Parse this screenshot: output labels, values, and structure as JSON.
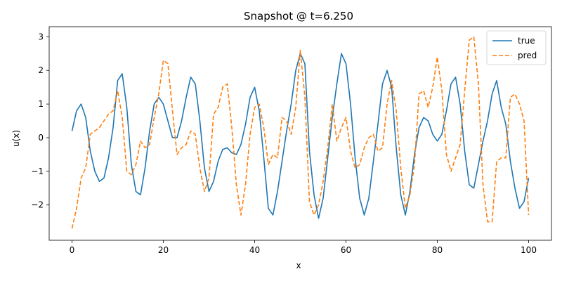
{
  "chart_data": {
    "type": "line",
    "title": "Snapshot @ t=6.250",
    "xlabel": "x",
    "ylabel": "u(x)",
    "xlim": [
      -5,
      105
    ],
    "ylim": [
      -3.05,
      3.3
    ],
    "xticks": [
      0,
      20,
      40,
      60,
      80,
      100
    ],
    "yticks": [
      -2,
      -1,
      0,
      1,
      2,
      3
    ],
    "grid": false,
    "legend_position": "top-right",
    "x": [
      0,
      1,
      2,
      3,
      4,
      5,
      6,
      7,
      8,
      9,
      10,
      11,
      12,
      13,
      14,
      15,
      16,
      17,
      18,
      19,
      20,
      21,
      22,
      23,
      24,
      25,
      26,
      27,
      28,
      29,
      30,
      31,
      32,
      33,
      34,
      35,
      36,
      37,
      38,
      39,
      40,
      41,
      42,
      43,
      44,
      45,
      46,
      47,
      48,
      49,
      50,
      51,
      52,
      53,
      54,
      55,
      56,
      57,
      58,
      59,
      60,
      61,
      62,
      63,
      64,
      65,
      66,
      67,
      68,
      69,
      70,
      71,
      72,
      73,
      74,
      75,
      76,
      77,
      78,
      79,
      80,
      81,
      82,
      83,
      84,
      85,
      86,
      87,
      88,
      89,
      90,
      91,
      92,
      93,
      94,
      95,
      96,
      97,
      98,
      99,
      100
    ],
    "series": [
      {
        "name": "true",
        "color": "#1f77b4",
        "dash": "solid",
        "values": [
          0.2,
          0.8,
          1.0,
          0.6,
          -0.4,
          -1.0,
          -1.3,
          -1.2,
          -0.6,
          0.3,
          1.7,
          1.9,
          0.9,
          -0.8,
          -1.6,
          -1.7,
          -0.9,
          0.2,
          1.0,
          1.2,
          1.0,
          0.5,
          0.0,
          0.0,
          0.5,
          1.2,
          1.8,
          1.6,
          0.5,
          -0.9,
          -1.6,
          -1.3,
          -0.7,
          -0.35,
          -0.3,
          -0.45,
          -0.5,
          -0.2,
          0.4,
          1.2,
          1.5,
          0.8,
          -0.6,
          -2.1,
          -2.3,
          -1.6,
          -0.7,
          0.2,
          1.0,
          2.0,
          2.5,
          2.2,
          -0.4,
          -1.7,
          -2.4,
          -1.8,
          -0.6,
          0.6,
          1.6,
          2.5,
          2.2,
          1.0,
          -0.6,
          -1.8,
          -2.3,
          -1.8,
          -0.7,
          0.4,
          1.6,
          2.0,
          1.5,
          -0.3,
          -1.7,
          -2.3,
          -1.6,
          -0.5,
          0.3,
          0.6,
          0.5,
          0.1,
          -0.1,
          0.1,
          0.8,
          1.6,
          1.8,
          1.0,
          -0.4,
          -1.4,
          -1.5,
          -0.8,
          -0.1,
          0.5,
          1.3,
          1.7,
          0.9,
          0.4,
          -0.7,
          -1.5,
          -2.1,
          -1.9,
          -1.2
        ],
        "note": ""
      }
    ]
  }
}
